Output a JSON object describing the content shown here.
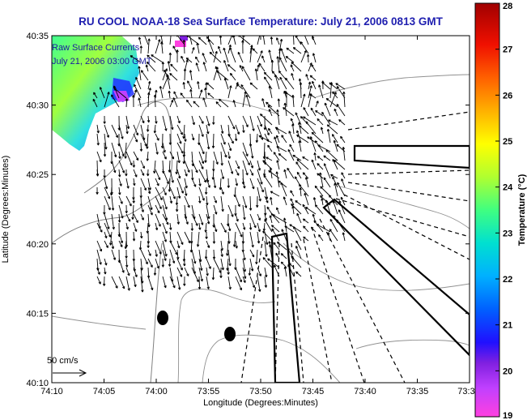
{
  "title": "RU COOL  NOAA-18  Sea Surface Temperature:  July 21, 2006 0813 GMT",
  "map": {
    "legend_line1": "Raw Surface Currents",
    "legend_line2": "July 21, 2006 03:00 GMT",
    "scale_label": "50 cm/s",
    "xlabel": "Longitude (Degrees:Minutes)",
    "ylabel": "Latitude (Degrees:Minutes)",
    "x_ticks": [
      "74:10",
      "74:05",
      "74:00",
      "73:55",
      "73:50",
      "73:45",
      "73:40",
      "73:35",
      "73:3"
    ],
    "y_ticks": [
      "40:35",
      "40:30",
      "40:25",
      "40:20",
      "40:15",
      "40:10"
    ],
    "colors": {
      "land": "#ffffff",
      "coast": "#808080",
      "box": "#000000",
      "title": "#2020b0",
      "legend": "#1a1aa0"
    }
  },
  "colorbar": {
    "label": "Temperature (°C)",
    "min": 19,
    "max": 28,
    "ticks": [
      "28",
      "27",
      "26",
      "25",
      "24",
      "23",
      "22",
      "21",
      "20",
      "19"
    ]
  }
}
